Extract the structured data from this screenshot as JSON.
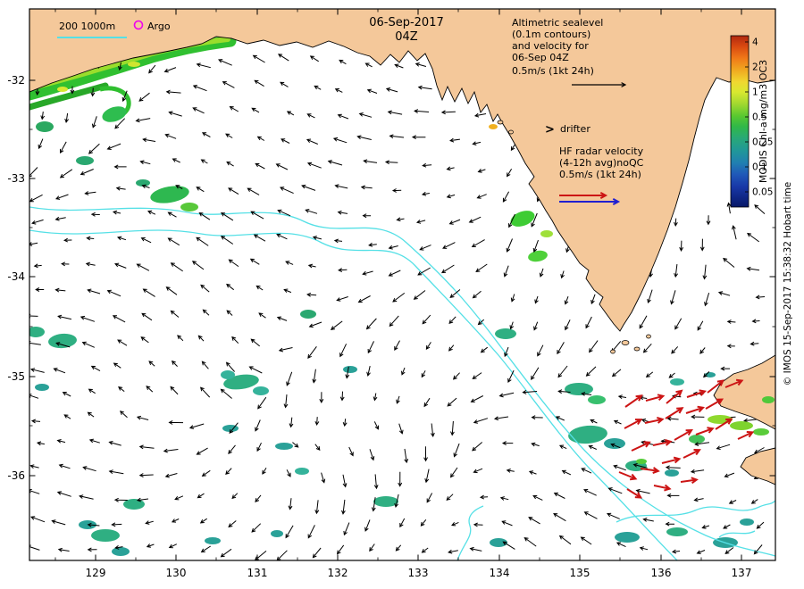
{
  "map": {
    "title_date": "06-Sep-2017",
    "title_hour": "04Z"
  },
  "legend_topleft": {
    "depth_label": "200  1000m",
    "argo_label": "Argo"
  },
  "annotations": {
    "altimetric_lines": [
      "Altimetric sealevel",
      "(0.1m contours)",
      "and velocity for",
      "06-Sep 04Z"
    ],
    "altimetric_scale": "0.5m/s (1kt 24h)",
    "drifter_symbol": ">",
    "drifter_label": "drifter",
    "hf_lines": [
      "HF radar velocity",
      "(4-12h avg)noQC",
      "0.5m/s (1kt 24h)"
    ]
  },
  "colorbar": {
    "title": "MODIS Chl-a mg/m3 OC3",
    "tick_labels": [
      "4",
      "2",
      "1",
      "0.5",
      "0.25",
      "0.1",
      "0.05"
    ]
  },
  "axes": {
    "x_tick_labels": [
      "129",
      "130",
      "131",
      "132",
      "133",
      "134",
      "135",
      "136",
      "137"
    ],
    "y_tick_labels": [
      "-32",
      "-33",
      "-34",
      "-35",
      "-36"
    ]
  },
  "watermark": "© IMOS 15-Sep-2017 15:38:32 Hobart time",
  "colors": {
    "land": "#F4C89A",
    "contour": "#55E0E6",
    "annotation_blue": "#10109E",
    "title_gray": "#333333",
    "hf_red": "#CC1414",
    "hf_blue": "#2020D0",
    "magenta": "#EE00EE",
    "cb_title": "#0A7A46"
  }
}
